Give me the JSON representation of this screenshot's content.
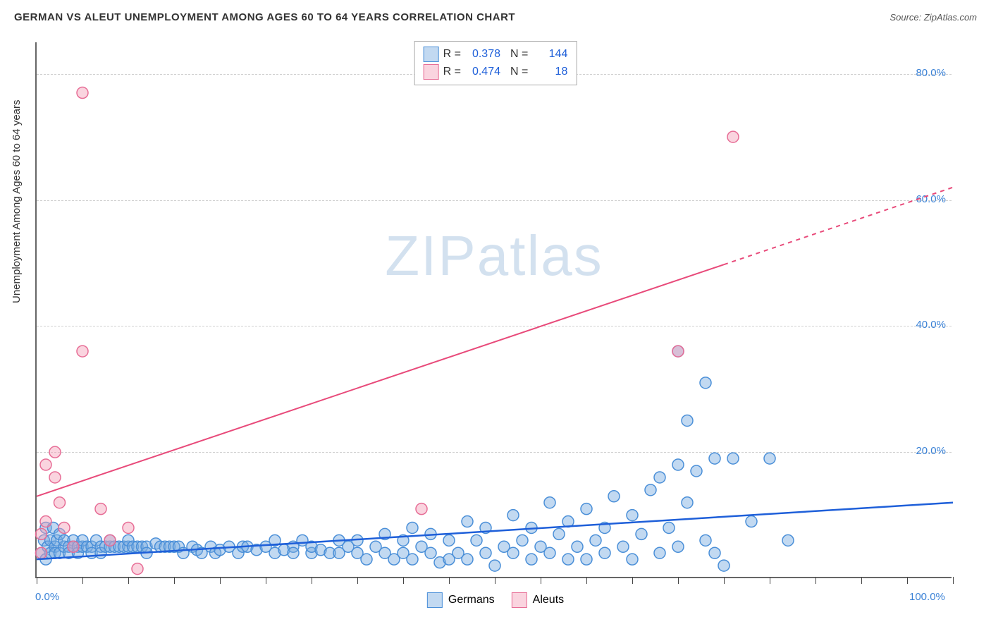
{
  "title": "GERMAN VS ALEUT UNEMPLOYMENT AMONG AGES 60 TO 64 YEARS CORRELATION CHART",
  "source": "Source: ZipAtlas.com",
  "watermark": {
    "bold": "ZIP",
    "light": "atlas"
  },
  "ylabel": "Unemployment Among Ages 60 to 64 years",
  "chart": {
    "type": "scatter",
    "xlim": [
      0,
      100
    ],
    "ylim": [
      0,
      85
    ],
    "x_ticks_minor_step": 5,
    "x_ticks_labels": [
      {
        "pos": 0,
        "text": "0.0%",
        "align": "left"
      },
      {
        "pos": 100,
        "text": "100.0%",
        "align": "right"
      }
    ],
    "y_grid": [
      20,
      40,
      60,
      80
    ],
    "y_ticks_labels": [
      {
        "pos": 20,
        "text": "20.0%"
      },
      {
        "pos": 40,
        "text": "40.0%"
      },
      {
        "pos": 60,
        "text": "60.0%"
      },
      {
        "pos": 80,
        "text": "80.0%"
      }
    ],
    "background_color": "#ffffff",
    "grid_color": "#d0d0d0",
    "axis_color": "#666666",
    "marker_radius": 8,
    "marker_stroke_width": 1.5,
    "series": [
      {
        "name": "Germans",
        "fill": "rgba(120,170,225,0.45)",
        "stroke": "#4a8fd8",
        "r_value": "0.378",
        "n_value": "144",
        "trend": {
          "x1": 0,
          "y1": 3.0,
          "x2": 100,
          "y2": 12.0,
          "solid_until": 100,
          "color": "#1e5fd9",
          "width": 2.5
        },
        "points": [
          [
            0.5,
            4
          ],
          [
            0.8,
            6
          ],
          [
            1,
            3
          ],
          [
            1,
            8
          ],
          [
            1.2,
            5
          ],
          [
            1.5,
            6
          ],
          [
            1.5,
            4
          ],
          [
            1.8,
            8
          ],
          [
            2,
            5
          ],
          [
            2,
            4
          ],
          [
            2.2,
            6
          ],
          [
            2.5,
            7
          ],
          [
            2.5,
            4
          ],
          [
            3,
            5
          ],
          [
            3,
            6
          ],
          [
            3.5,
            5
          ],
          [
            3.5,
            4
          ],
          [
            4,
            6
          ],
          [
            4,
            5
          ],
          [
            4.5,
            5
          ],
          [
            4.5,
            4
          ],
          [
            5,
            5
          ],
          [
            5,
            6
          ],
          [
            5.5,
            5
          ],
          [
            6,
            5
          ],
          [
            6,
            4
          ],
          [
            6.5,
            6
          ],
          [
            7,
            5
          ],
          [
            7,
            4
          ],
          [
            7.5,
            5
          ],
          [
            8,
            5
          ],
          [
            8,
            6
          ],
          [
            8.5,
            5
          ],
          [
            9,
            5
          ],
          [
            9.5,
            5
          ],
          [
            10,
            5
          ],
          [
            10,
            6
          ],
          [
            10.5,
            5
          ],
          [
            11,
            5
          ],
          [
            11.5,
            5
          ],
          [
            12,
            5
          ],
          [
            12,
            4
          ],
          [
            13,
            5.5
          ],
          [
            13.5,
            5
          ],
          [
            14,
            5
          ],
          [
            14.5,
            5
          ],
          [
            15,
            5
          ],
          [
            15.5,
            5
          ],
          [
            16,
            4
          ],
          [
            17,
            5
          ],
          [
            17.5,
            4.5
          ],
          [
            18,
            4
          ],
          [
            19,
            5
          ],
          [
            19.5,
            4
          ],
          [
            20,
            4.5
          ],
          [
            21,
            5
          ],
          [
            22,
            4
          ],
          [
            22.5,
            5
          ],
          [
            23,
            5
          ],
          [
            24,
            4.5
          ],
          [
            25,
            5
          ],
          [
            26,
            4
          ],
          [
            26,
            6
          ],
          [
            27,
            4.5
          ],
          [
            28,
            5
          ],
          [
            28,
            4
          ],
          [
            29,
            6
          ],
          [
            30,
            4
          ],
          [
            30,
            5
          ],
          [
            31,
            4.5
          ],
          [
            32,
            4
          ],
          [
            33,
            6
          ],
          [
            33,
            4
          ],
          [
            34,
            5
          ],
          [
            35,
            6
          ],
          [
            35,
            4
          ],
          [
            36,
            3
          ],
          [
            37,
            5
          ],
          [
            38,
            4
          ],
          [
            38,
            7
          ],
          [
            39,
            3
          ],
          [
            40,
            6
          ],
          [
            40,
            4
          ],
          [
            41,
            8
          ],
          [
            41,
            3
          ],
          [
            42,
            5
          ],
          [
            43,
            4
          ],
          [
            43,
            7
          ],
          [
            44,
            2.5
          ],
          [
            45,
            6
          ],
          [
            45,
            3
          ],
          [
            46,
            4
          ],
          [
            47,
            9
          ],
          [
            47,
            3
          ],
          [
            48,
            6
          ],
          [
            49,
            4
          ],
          [
            49,
            8
          ],
          [
            50,
            2
          ],
          [
            51,
            5
          ],
          [
            52,
            4
          ],
          [
            52,
            10
          ],
          [
            53,
            6
          ],
          [
            54,
            3
          ],
          [
            54,
            8
          ],
          [
            55,
            5
          ],
          [
            56,
            12
          ],
          [
            56,
            4
          ],
          [
            57,
            7
          ],
          [
            58,
            3
          ],
          [
            58,
            9
          ],
          [
            59,
            5
          ],
          [
            60,
            11
          ],
          [
            60,
            3
          ],
          [
            61,
            6
          ],
          [
            62,
            8
          ],
          [
            62,
            4
          ],
          [
            63,
            13
          ],
          [
            64,
            5
          ],
          [
            65,
            10
          ],
          [
            65,
            3
          ],
          [
            66,
            7
          ],
          [
            67,
            14
          ],
          [
            68,
            4
          ],
          [
            68,
            16
          ],
          [
            69,
            8
          ],
          [
            70,
            18
          ],
          [
            70,
            36
          ],
          [
            70,
            5
          ],
          [
            71,
            12
          ],
          [
            71,
            25
          ],
          [
            72,
            17
          ],
          [
            73,
            31
          ],
          [
            73,
            6
          ],
          [
            74,
            19
          ],
          [
            74,
            4
          ],
          [
            75,
            2
          ],
          [
            76,
            19
          ],
          [
            78,
            9
          ],
          [
            80,
            19
          ],
          [
            82,
            6
          ]
        ]
      },
      {
        "name": "Aleuts",
        "fill": "rgba(245,160,185,0.45)",
        "stroke": "#e76d96",
        "r_value": "0.474",
        "n_value": "18",
        "trend": {
          "x1": 0,
          "y1": 13.0,
          "x2": 100,
          "y2": 62.0,
          "solid_until": 75,
          "color": "#e84a7a",
          "width": 2
        },
        "points": [
          [
            0.5,
            4
          ],
          [
            0.5,
            7
          ],
          [
            1,
            9
          ],
          [
            1,
            18
          ],
          [
            2,
            20
          ],
          [
            2,
            16
          ],
          [
            2.5,
            12
          ],
          [
            3,
            8
          ],
          [
            4,
            5
          ],
          [
            5,
            36
          ],
          [
            5,
            77
          ],
          [
            7,
            11
          ],
          [
            8,
            6
          ],
          [
            10,
            8
          ],
          [
            11,
            1.5
          ],
          [
            42,
            11
          ],
          [
            70,
            36
          ],
          [
            76,
            70
          ]
        ]
      }
    ]
  },
  "bottom_legend": [
    {
      "label": "Germans",
      "fill": "rgba(120,170,225,0.45)",
      "stroke": "#4a8fd8"
    },
    {
      "label": "Aleuts",
      "fill": "rgba(245,160,185,0.45)",
      "stroke": "#e76d96"
    }
  ]
}
